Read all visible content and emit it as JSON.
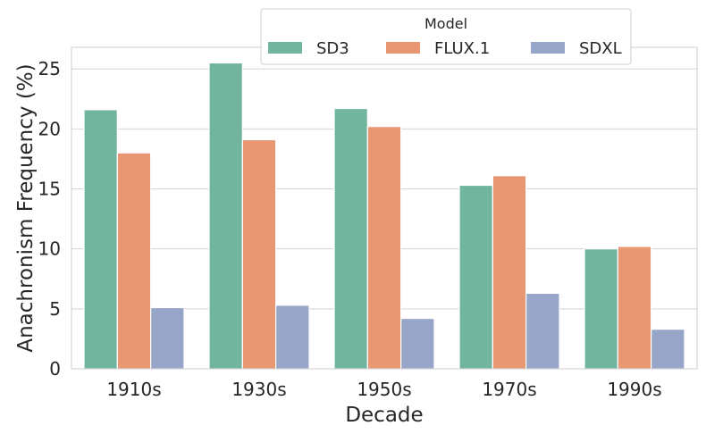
{
  "chart_data": {
    "type": "bar",
    "categories": [
      "1910s",
      "1930s",
      "1950s",
      "1970s",
      "1990s"
    ],
    "series": [
      {
        "name": "SD3",
        "color": "#72b59e",
        "values": [
          21.6,
          25.5,
          21.7,
          15.3,
          10.0
        ]
      },
      {
        "name": "FLUX.1",
        "color": "#e99673",
        "values": [
          18.0,
          19.1,
          20.2,
          16.1,
          10.2
        ]
      },
      {
        "name": "SDXL",
        "color": "#96a5c8",
        "values": [
          5.1,
          5.3,
          4.2,
          6.3,
          3.3
        ]
      }
    ],
    "xlabel": "Decade",
    "ylabel": "Anachronism Frequency (%)",
    "ylim": [
      0,
      26.8
    ],
    "yticks": [
      0,
      5,
      10,
      15,
      20,
      25
    ],
    "grid": true,
    "legend": {
      "title": "Model",
      "placement": "top-center"
    }
  }
}
